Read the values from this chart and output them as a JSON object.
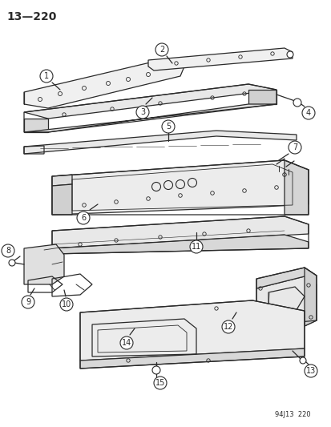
{
  "title": "13—220",
  "background": "#ffffff",
  "footer": "94J13  220",
  "lc": "#2a2a2a",
  "lw": 0.9
}
